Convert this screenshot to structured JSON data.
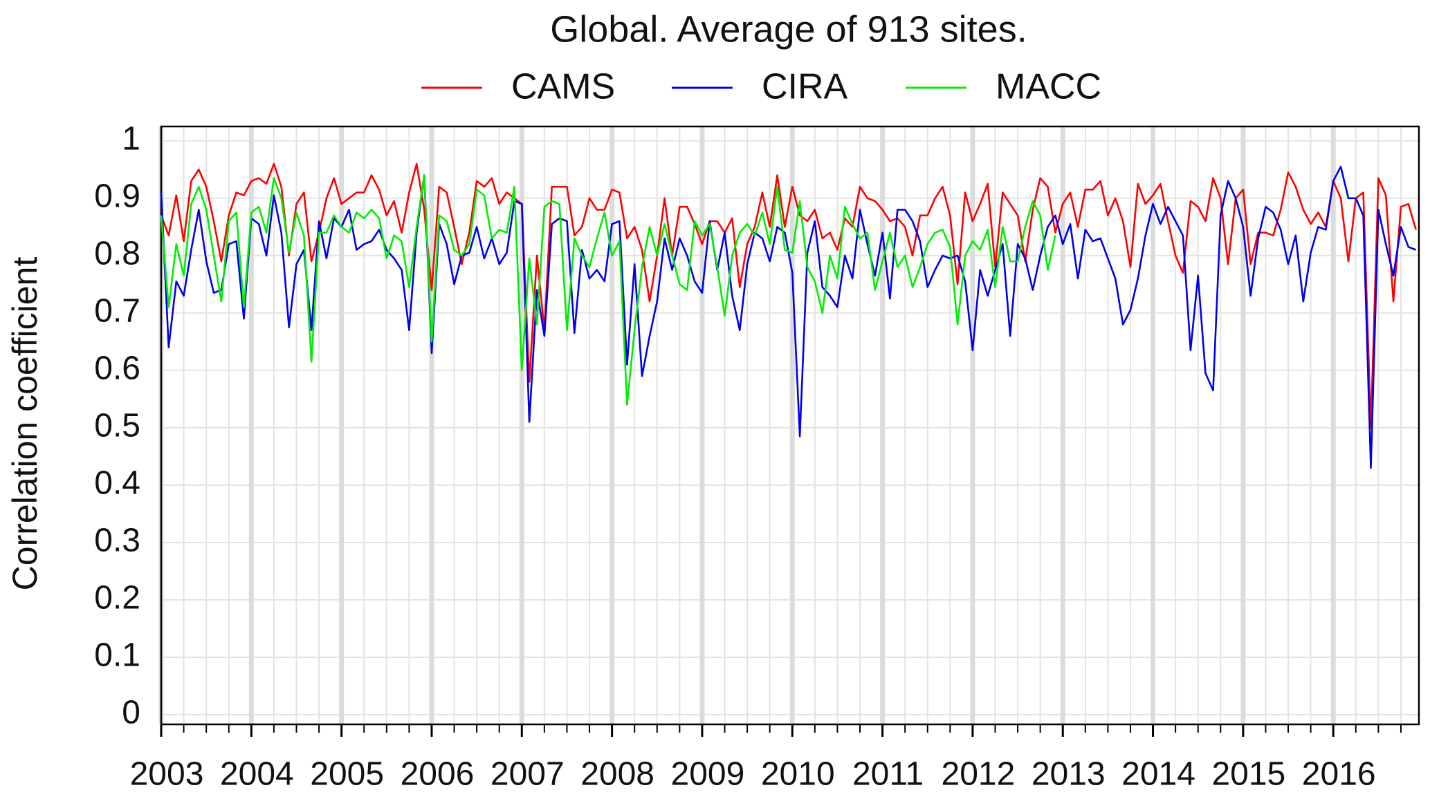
{
  "chart_data": {
    "type": "line",
    "title": "Global. Average of 913 sites.",
    "y_label": "Correlation coefficient",
    "legend": "top",
    "grid": true,
    "xlim": [
      2003,
      2016.95
    ],
    "ylim": [
      -0.017,
      1.025
    ],
    "yticks": [
      0,
      0.1,
      0.2,
      0.3,
      0.4,
      0.5,
      0.6,
      0.7,
      0.8,
      0.9,
      1
    ],
    "xticks": [
      2003,
      2004,
      2005,
      2006,
      2007,
      2008,
      2009,
      2010,
      2011,
      2012,
      2013,
      2014,
      2015,
      2016
    ],
    "xminor": [
      2003.25,
      2003.5,
      2003.75,
      2004.25,
      2004.5,
      2004.75,
      2005.25,
      2005.5,
      2005.75,
      2006.25,
      2006.5,
      2006.75,
      2007.25,
      2007.5,
      2007.75,
      2008.25,
      2008.5,
      2008.75,
      2009.25,
      2009.5,
      2009.75,
      2010.25,
      2010.5,
      2010.75,
      2011.25,
      2011.5,
      2011.75,
      2012.25,
      2012.5,
      2012.75,
      2013.25,
      2013.5,
      2013.75,
      2014.25,
      2014.5,
      2014.75,
      2015.25,
      2015.5,
      2015.75,
      2016.25,
      2016.5,
      2016.75
    ],
    "x": [
      2003,
      2003.083,
      2003.167,
      2003.25,
      2003.333,
      2003.417,
      2003.5,
      2003.583,
      2003.667,
      2003.75,
      2003.833,
      2003.917,
      2004,
      2004.083,
      2004.167,
      2004.25,
      2004.333,
      2004.417,
      2004.5,
      2004.583,
      2004.667,
      2004.75,
      2004.833,
      2004.917,
      2005,
      2005.083,
      2005.167,
      2005.25,
      2005.333,
      2005.417,
      2005.5,
      2005.583,
      2005.667,
      2005.75,
      2005.833,
      2005.917,
      2006,
      2006.083,
      2006.167,
      2006.25,
      2006.333,
      2006.417,
      2006.5,
      2006.583,
      2006.667,
      2006.75,
      2006.833,
      2006.917,
      2007,
      2007.083,
      2007.167,
      2007.25,
      2007.333,
      2007.417,
      2007.5,
      2007.583,
      2007.667,
      2007.75,
      2007.833,
      2007.917,
      2008,
      2008.083,
      2008.167,
      2008.25,
      2008.333,
      2008.417,
      2008.5,
      2008.583,
      2008.667,
      2008.75,
      2008.833,
      2008.917,
      2009,
      2009.083,
      2009.167,
      2009.25,
      2009.333,
      2009.417,
      2009.5,
      2009.583,
      2009.667,
      2009.75,
      2009.833,
      2009.917,
      2010,
      2010.083,
      2010.167,
      2010.25,
      2010.333,
      2010.417,
      2010.5,
      2010.583,
      2010.667,
      2010.75,
      2010.833,
      2010.917,
      2011,
      2011.083,
      2011.167,
      2011.25,
      2011.333,
      2011.417,
      2011.5,
      2011.583,
      2011.667,
      2011.75,
      2011.833,
      2011.917,
      2012,
      2012.083,
      2012.167,
      2012.25,
      2012.333,
      2012.417,
      2012.5,
      2012.583,
      2012.667,
      2012.75,
      2012.833,
      2012.917,
      2013,
      2013.083,
      2013.167,
      2013.25,
      2013.333,
      2013.417,
      2013.5,
      2013.583,
      2013.667,
      2013.75,
      2013.833,
      2013.917,
      2014,
      2014.083,
      2014.167,
      2014.25,
      2014.333,
      2014.417,
      2014.5,
      2014.583,
      2014.667,
      2014.75,
      2014.833,
      2014.917,
      2015,
      2015.083,
      2015.167,
      2015.25,
      2015.333,
      2015.417,
      2015.5,
      2015.583,
      2015.667,
      2015.75,
      2015.833,
      2015.917,
      2016,
      2016.083,
      2016.167,
      2016.25,
      2016.333,
      2016.417,
      2016.5,
      2016.583,
      2016.667,
      2016.75,
      2016.833,
      2016.917
    ],
    "series": [
      {
        "name": "CAMS",
        "color": "#ff0000",
        "values": [
          0.87,
          0.835,
          0.905,
          0.825,
          0.93,
          0.95,
          0.92,
          0.86,
          0.79,
          0.87,
          0.91,
          0.905,
          0.93,
          0.935,
          0.925,
          0.96,
          0.92,
          0.8,
          0.89,
          0.91,
          0.79,
          0.84,
          0.9,
          0.935,
          0.89,
          0.9,
          0.91,
          0.91,
          0.94,
          0.915,
          0.87,
          0.895,
          0.84,
          0.91,
          0.96,
          0.88,
          0.74,
          0.92,
          0.91,
          0.85,
          0.785,
          0.84,
          0.93,
          0.92,
          0.935,
          0.89,
          0.91,
          0.9,
          0.89,
          0.58,
          0.8,
          0.67,
          0.92,
          0.92,
          0.92,
          0.835,
          0.85,
          0.9,
          0.88,
          0.88,
          0.915,
          0.91,
          0.83,
          0.85,
          0.81,
          0.72,
          0.8,
          0.9,
          0.8,
          0.885,
          0.885,
          0.855,
          0.82,
          0.86,
          0.86,
          0.84,
          0.865,
          0.745,
          0.82,
          0.85,
          0.91,
          0.85,
          0.94,
          0.85,
          0.92,
          0.87,
          0.86,
          0.88,
          0.83,
          0.84,
          0.81,
          0.865,
          0.85,
          0.92,
          0.9,
          0.895,
          0.88,
          0.86,
          0.865,
          0.85,
          0.8,
          0.87,
          0.87,
          0.9,
          0.92,
          0.87,
          0.75,
          0.91,
          0.86,
          0.89,
          0.925,
          0.78,
          0.91,
          0.89,
          0.87,
          0.79,
          0.88,
          0.935,
          0.92,
          0.84,
          0.89,
          0.91,
          0.85,
          0.915,
          0.915,
          0.93,
          0.87,
          0.9,
          0.86,
          0.78,
          0.925,
          0.89,
          0.905,
          0.925,
          0.86,
          0.8,
          0.77,
          0.895,
          0.885,
          0.86,
          0.935,
          0.9,
          0.785,
          0.9,
          0.915,
          0.785,
          0.84,
          0.84,
          0.835,
          0.88,
          0.945,
          0.92,
          0.88,
          0.855,
          0.875,
          0.85,
          0.93,
          0.9,
          0.79,
          0.9,
          0.91,
          0.5,
          0.935,
          0.905,
          0.72,
          0.885,
          0.89,
          0.845
        ]
      },
      {
        "name": "CIRA",
        "color": "#0000ee",
        "values": [
          0.91,
          0.64,
          0.755,
          0.73,
          0.81,
          0.88,
          0.79,
          0.735,
          0.74,
          0.82,
          0.825,
          0.69,
          0.865,
          0.855,
          0.8,
          0.905,
          0.84,
          0.675,
          0.785,
          0.81,
          0.67,
          0.86,
          0.795,
          0.865,
          0.85,
          0.88,
          0.81,
          0.82,
          0.825,
          0.845,
          0.81,
          0.795,
          0.775,
          0.67,
          0.84,
          0.94,
          0.63,
          0.855,
          0.82,
          0.75,
          0.8,
          0.805,
          0.85,
          0.795,
          0.83,
          0.785,
          0.805,
          0.895,
          0.89,
          0.51,
          0.74,
          0.66,
          0.855,
          0.865,
          0.86,
          0.665,
          0.81,
          0.76,
          0.775,
          0.755,
          0.855,
          0.86,
          0.61,
          0.785,
          0.59,
          0.66,
          0.72,
          0.83,
          0.775,
          0.83,
          0.8,
          0.755,
          0.735,
          0.86,
          0.775,
          0.84,
          0.73,
          0.67,
          0.785,
          0.84,
          0.83,
          0.79,
          0.85,
          0.84,
          0.77,
          0.485,
          0.805,
          0.86,
          0.745,
          0.73,
          0.71,
          0.8,
          0.76,
          0.88,
          0.82,
          0.765,
          0.84,
          0.725,
          0.88,
          0.88,
          0.86,
          0.825,
          0.745,
          0.775,
          0.8,
          0.795,
          0.8,
          0.755,
          0.635,
          0.775,
          0.73,
          0.775,
          0.82,
          0.66,
          0.82,
          0.795,
          0.74,
          0.8,
          0.85,
          0.87,
          0.82,
          0.855,
          0.76,
          0.845,
          0.825,
          0.83,
          0.795,
          0.76,
          0.68,
          0.705,
          0.76,
          0.835,
          0.89,
          0.855,
          0.885,
          0.86,
          0.835,
          0.635,
          0.765,
          0.595,
          0.565,
          0.87,
          0.93,
          0.9,
          0.85,
          0.73,
          0.83,
          0.885,
          0.875,
          0.845,
          0.785,
          0.835,
          0.72,
          0.805,
          0.85,
          0.845,
          0.93,
          0.955,
          0.9,
          0.9,
          0.87,
          0.43,
          0.88,
          0.82,
          0.765,
          0.85,
          0.815,
          0.81
        ]
      },
      {
        "name": "MACC",
        "color": "#00ee00",
        "values": [
          0.87,
          0.71,
          0.82,
          0.765,
          0.89,
          0.92,
          0.88,
          0.8,
          0.72,
          0.86,
          0.875,
          0.71,
          0.875,
          0.885,
          0.84,
          0.935,
          0.9,
          0.805,
          0.875,
          0.835,
          0.615,
          0.84,
          0.84,
          0.87,
          0.85,
          0.84,
          0.875,
          0.865,
          0.88,
          0.865,
          0.795,
          0.835,
          0.825,
          0.745,
          0.85,
          0.94,
          0.65,
          0.87,
          0.86,
          0.81,
          0.8,
          0.82,
          0.915,
          0.905,
          0.83,
          0.845,
          0.84,
          0.92,
          0.6,
          0.795,
          0.68,
          0.885,
          0.895,
          0.89,
          0.67,
          0.83,
          0.8,
          0.78,
          0.83,
          0.875,
          0.8,
          0.825,
          0.54,
          0.67,
          0.78,
          0.85,
          0.8,
          0.855,
          0.8,
          0.75,
          0.74,
          0.86,
          0.835,
          0.855,
          0.78,
          0.695,
          0.8,
          0.84,
          0.855,
          0.835,
          0.875,
          0.82,
          0.92,
          0.81,
          0.805,
          0.895,
          0.78,
          0.755,
          0.7,
          0.8,
          0.76,
          0.885,
          0.855,
          0.83,
          0.84,
          0.74,
          0.79,
          0.84,
          0.78,
          0.8,
          0.745,
          0.78,
          0.82,
          0.84,
          0.845,
          0.815,
          0.68,
          0.8,
          0.825,
          0.81,
          0.845,
          0.745,
          0.85,
          0.79,
          0.79,
          0.85,
          0.895,
          0.87,
          0.775,
          0.835,
          null,
          null,
          null,
          null,
          null,
          null,
          null,
          null,
          null,
          null,
          null,
          null,
          null,
          null,
          null,
          null,
          null,
          null,
          null,
          null,
          null,
          null,
          null,
          null,
          null,
          null,
          null,
          null,
          null,
          null,
          null,
          null,
          null,
          null,
          null,
          null,
          null,
          null,
          null,
          null,
          null,
          null,
          null,
          null,
          null,
          null,
          null,
          null
        ]
      }
    ]
  }
}
